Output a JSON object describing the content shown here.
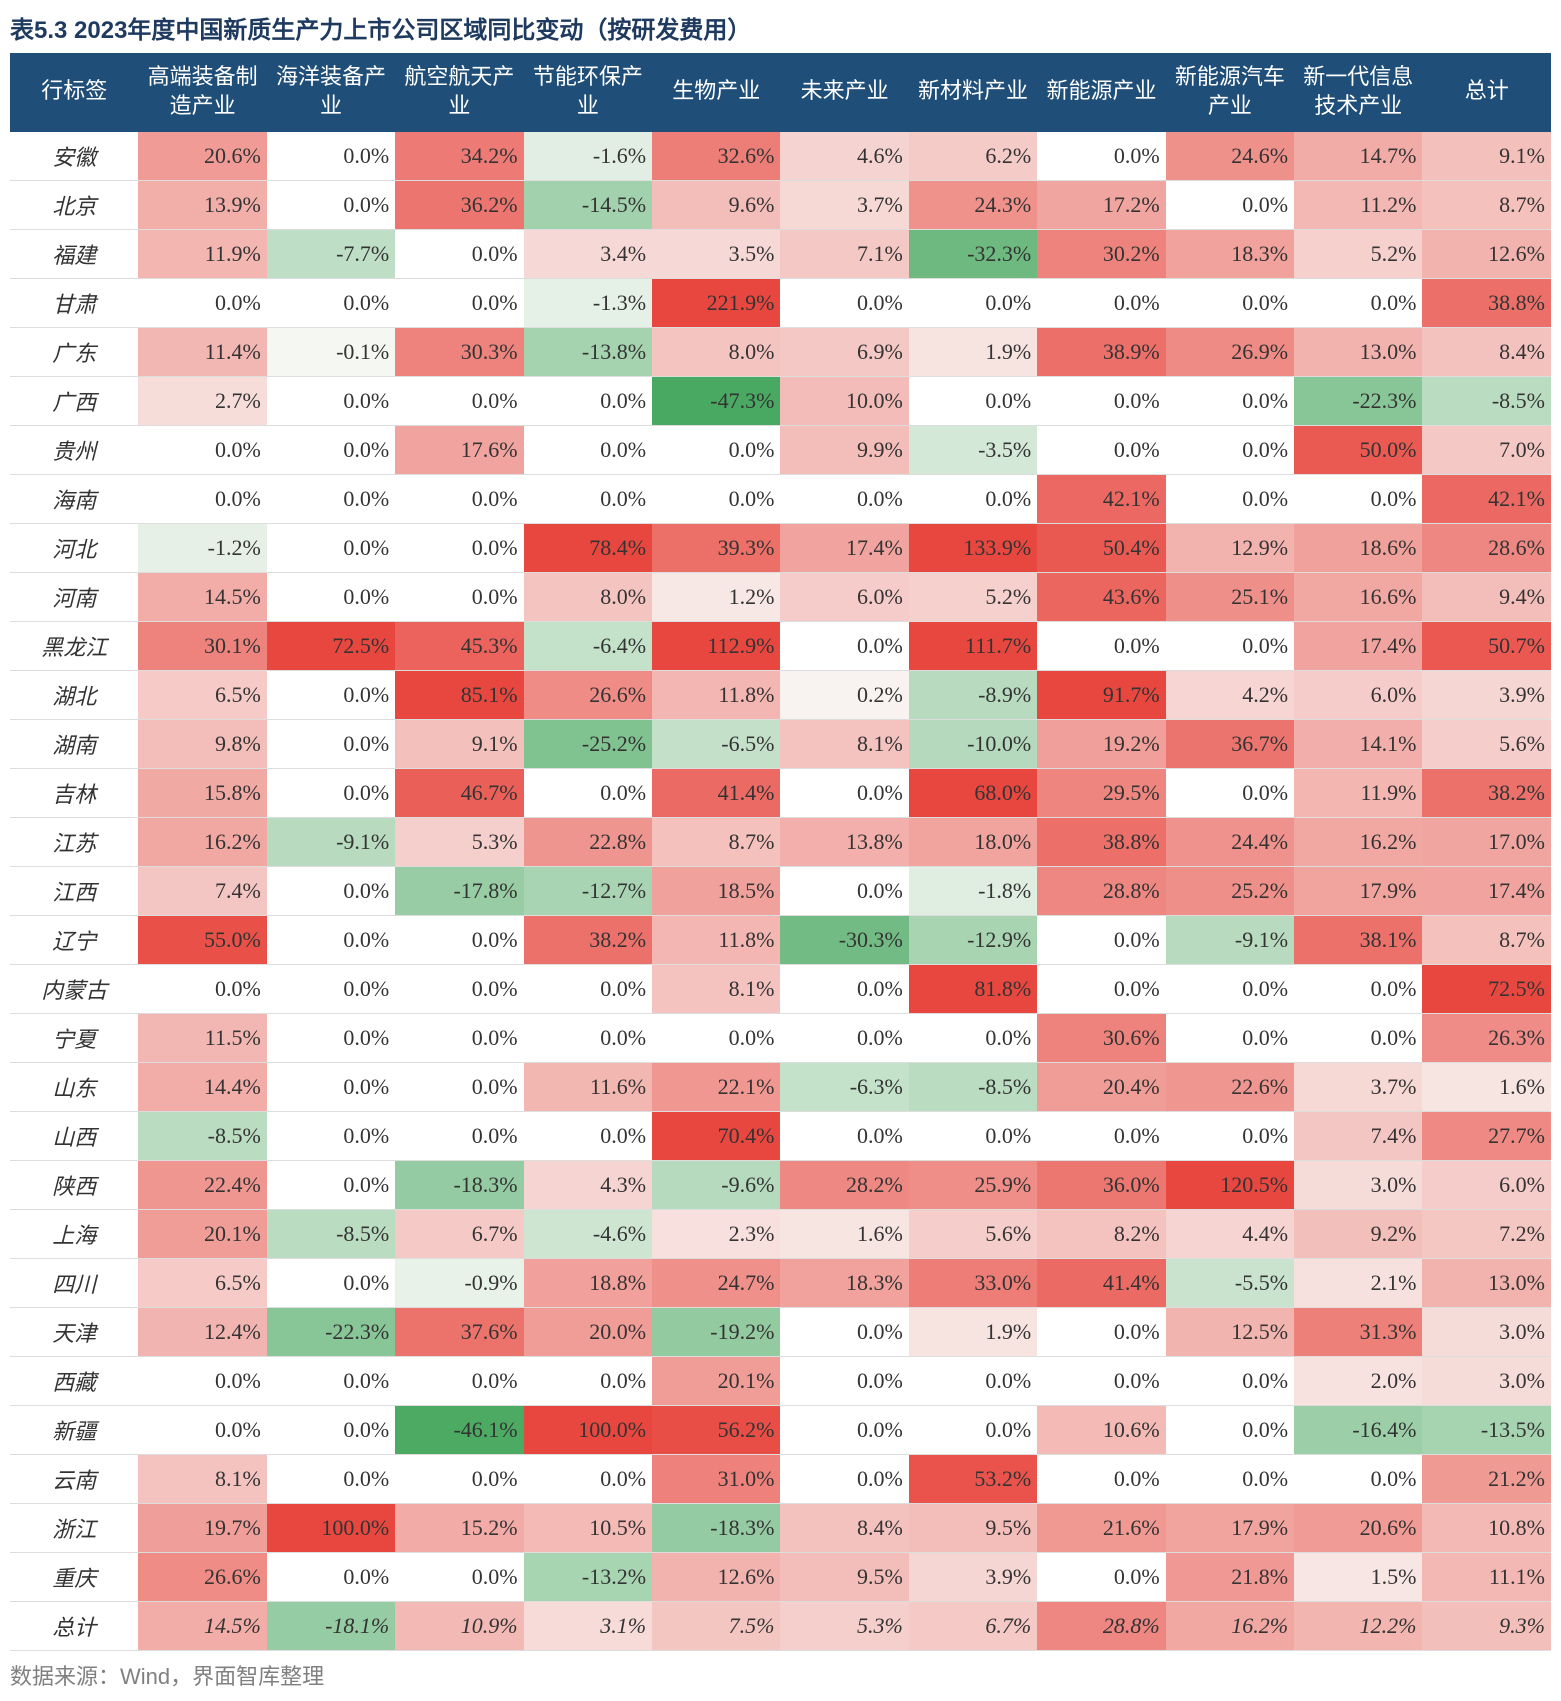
{
  "title": "表5.3 2023年度中国新质生产力上市公司区域同比变动（按研发费用）",
  "footer": "数据来源：Wind，界面智库整理",
  "columns": [
    "行标签",
    "高端装备制造产业",
    "海洋装备产业",
    "航空航天产业",
    "节能环保产业",
    "生物产业",
    "未来产业",
    "新材料产业",
    "新能源产业",
    "新能源汽车产业",
    "新一代信息技术产业",
    "总计"
  ],
  "rows": [
    {
      "label": "安徽",
      "v": [
        20.6,
        0.0,
        34.2,
        -1.6,
        32.6,
        4.6,
        6.2,
        0.0,
        24.6,
        14.7,
        9.1
      ]
    },
    {
      "label": "北京",
      "v": [
        13.9,
        0.0,
        36.2,
        -14.5,
        9.6,
        3.7,
        24.3,
        17.2,
        0.0,
        11.2,
        8.7
      ]
    },
    {
      "label": "福建",
      "v": [
        11.9,
        -7.7,
        0.0,
        3.4,
        3.5,
        7.1,
        -32.3,
        30.2,
        18.3,
        5.2,
        12.6
      ]
    },
    {
      "label": "甘肃",
      "v": [
        0.0,
        0.0,
        0.0,
        -1.3,
        221.9,
        0.0,
        0.0,
        0.0,
        0.0,
        0.0,
        38.8
      ]
    },
    {
      "label": "广东",
      "v": [
        11.4,
        -0.1,
        30.3,
        -13.8,
        8.0,
        6.9,
        1.9,
        38.9,
        26.9,
        13.0,
        8.4
      ]
    },
    {
      "label": "广西",
      "v": [
        2.7,
        0.0,
        0.0,
        0.0,
        -47.3,
        10.0,
        0.0,
        0.0,
        0.0,
        -22.3,
        -8.5
      ]
    },
    {
      "label": "贵州",
      "v": [
        0.0,
        0.0,
        17.6,
        0.0,
        0.0,
        9.9,
        -3.5,
        0.0,
        0.0,
        50.0,
        7.0
      ]
    },
    {
      "label": "海南",
      "v": [
        0.0,
        0.0,
        0.0,
        0.0,
        0.0,
        0.0,
        0.0,
        42.1,
        0.0,
        0.0,
        42.1
      ]
    },
    {
      "label": "河北",
      "v": [
        -1.2,
        0.0,
        0.0,
        78.4,
        39.3,
        17.4,
        133.9,
        50.4,
        12.9,
        18.6,
        28.6
      ]
    },
    {
      "label": "河南",
      "v": [
        14.5,
        0.0,
        0.0,
        8.0,
        1.2,
        6.0,
        5.2,
        43.6,
        25.1,
        16.6,
        9.4
      ]
    },
    {
      "label": "黑龙江",
      "v": [
        30.1,
        72.5,
        45.3,
        -6.4,
        112.9,
        0.0,
        111.7,
        0.0,
        0.0,
        17.4,
        50.7
      ]
    },
    {
      "label": "湖北",
      "v": [
        6.5,
        0.0,
        85.1,
        26.6,
        11.8,
        0.2,
        -8.9,
        91.7,
        4.2,
        6.0,
        3.9
      ]
    },
    {
      "label": "湖南",
      "v": [
        9.8,
        0.0,
        9.1,
        -25.2,
        -6.5,
        8.1,
        -10.0,
        19.2,
        36.7,
        14.1,
        5.6
      ]
    },
    {
      "label": "吉林",
      "v": [
        15.8,
        0.0,
        46.7,
        0.0,
        41.4,
        0.0,
        68.0,
        29.5,
        0.0,
        11.9,
        38.2
      ]
    },
    {
      "label": "江苏",
      "v": [
        16.2,
        -9.1,
        5.3,
        22.8,
        8.7,
        13.8,
        18.0,
        38.8,
        24.4,
        16.2,
        17.0
      ]
    },
    {
      "label": "江西",
      "v": [
        7.4,
        0.0,
        -17.8,
        -12.7,
        18.5,
        0.0,
        -1.8,
        28.8,
        25.2,
        17.9,
        17.4
      ]
    },
    {
      "label": "辽宁",
      "v": [
        55.0,
        0.0,
        0.0,
        38.2,
        11.8,
        -30.3,
        -12.9,
        0.0,
        -9.1,
        38.1,
        8.7
      ]
    },
    {
      "label": "内蒙古",
      "v": [
        0.0,
        0.0,
        0.0,
        0.0,
        8.1,
        0.0,
        81.8,
        0.0,
        0.0,
        0.0,
        72.5
      ]
    },
    {
      "label": "宁夏",
      "v": [
        11.5,
        0.0,
        0.0,
        0.0,
        0.0,
        0.0,
        0.0,
        30.6,
        0.0,
        0.0,
        26.3
      ]
    },
    {
      "label": "山东",
      "v": [
        14.4,
        0.0,
        0.0,
        11.6,
        22.1,
        -6.3,
        -8.5,
        20.4,
        22.6,
        3.7,
        1.6
      ]
    },
    {
      "label": "山西",
      "v": [
        -8.5,
        0.0,
        0.0,
        0.0,
        70.4,
        0.0,
        0.0,
        0.0,
        0.0,
        7.4,
        27.7
      ]
    },
    {
      "label": "陕西",
      "v": [
        22.4,
        0.0,
        -18.3,
        4.3,
        -9.6,
        28.2,
        25.9,
        36.0,
        120.5,
        3.0,
        6.0
      ]
    },
    {
      "label": "上海",
      "v": [
        20.1,
        -8.5,
        6.7,
        -4.6,
        2.3,
        1.6,
        5.6,
        8.2,
        4.4,
        9.2,
        7.2
      ]
    },
    {
      "label": "四川",
      "v": [
        6.5,
        0.0,
        -0.9,
        18.8,
        24.7,
        18.3,
        33.0,
        41.4,
        -5.5,
        2.1,
        13.0
      ]
    },
    {
      "label": "天津",
      "v": [
        12.4,
        -22.3,
        37.6,
        20.0,
        -19.2,
        0.0,
        1.9,
        0.0,
        12.5,
        31.3,
        3.0
      ]
    },
    {
      "label": "西藏",
      "v": [
        0.0,
        0.0,
        0.0,
        0.0,
        20.1,
        0.0,
        0.0,
        0.0,
        0.0,
        2.0,
        3.0
      ]
    },
    {
      "label": "新疆",
      "v": [
        0.0,
        0.0,
        -46.1,
        100.0,
        56.2,
        0.0,
        0.0,
        10.6,
        0.0,
        -16.4,
        -13.5
      ]
    },
    {
      "label": "云南",
      "v": [
        8.1,
        0.0,
        0.0,
        0.0,
        31.0,
        0.0,
        53.2,
        0.0,
        0.0,
        0.0,
        21.2
      ]
    },
    {
      "label": "浙江",
      "v": [
        19.7,
        100.0,
        15.2,
        10.5,
        -18.3,
        8.4,
        9.5,
        21.6,
        17.9,
        20.6,
        10.8
      ]
    },
    {
      "label": "重庆",
      "v": [
        26.6,
        0.0,
        0.0,
        -13.2,
        12.6,
        9.5,
        3.9,
        0.0,
        21.8,
        1.5,
        11.1
      ]
    },
    {
      "label": "总计",
      "v": [
        14.5,
        -18.1,
        10.9,
        3.1,
        7.5,
        5.3,
        6.7,
        28.8,
        16.2,
        12.2,
        9.3
      ]
    }
  ],
  "style": {
    "header_bg": "#1f4e79",
    "header_fg": "#ffffff",
    "pos_color": "#e8473f",
    "neg_color": "#2e9c4a",
    "neutral_color": "#f9f9f7",
    "font_size": 22,
    "title_color": "#1f3a5f",
    "footer_color": "#808080",
    "max_intensity_value": 60
  }
}
